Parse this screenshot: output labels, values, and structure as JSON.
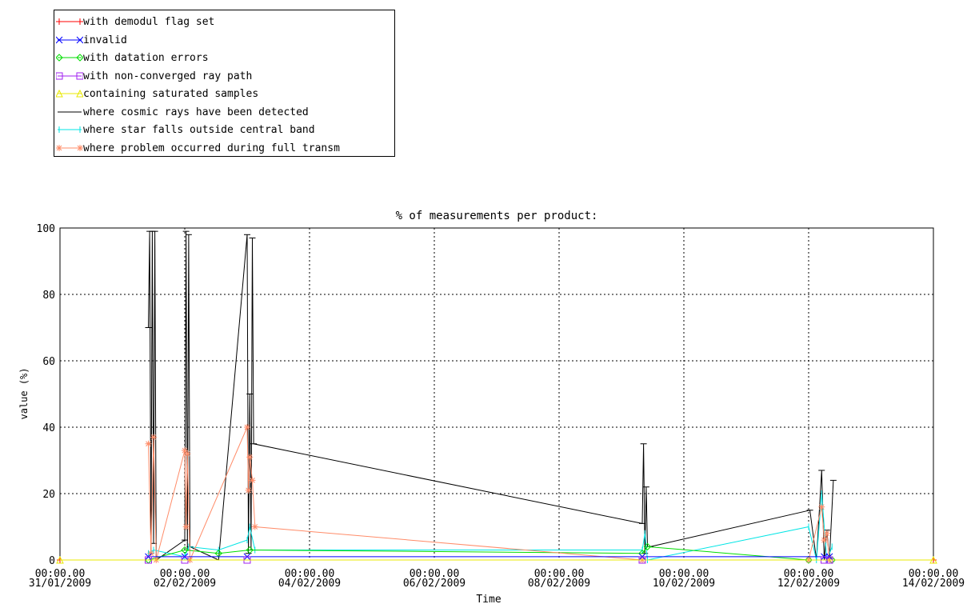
{
  "legend": [
    {
      "label": "with demodul flag set",
      "color": "#ff0000",
      "marker": "plus"
    },
    {
      "label": "invalid",
      "color": "#0000ff",
      "marker": "x"
    },
    {
      "label": "with datation errors",
      "color": "#00dd00",
      "marker": "diamond"
    },
    {
      "label": "with non-converged ray path",
      "color": "#a020f0",
      "marker": "square"
    },
    {
      "label": "containing saturated samples",
      "color": "#e8e800",
      "marker": "triangle"
    },
    {
      "label": "where cosmic rays have been detected",
      "color": "#000000",
      "marker": "none"
    },
    {
      "label": "where star falls outside central band",
      "color": "#00e5e5",
      "marker": "bar"
    },
    {
      "label": "where problem occurred during full transm",
      "color": "#ff8c69",
      "marker": "asterisk"
    }
  ],
  "chart_data": {
    "type": "line",
    "title": "% of measurements per product:",
    "xlabel": "Time",
    "ylabel": "value (%)",
    "xlim": [
      "2009-01-31T00:00",
      "2009-02-14T00:00"
    ],
    "ylim": [
      0,
      100
    ],
    "grid": true,
    "legend_position": "top-left",
    "x_ticks": [
      {
        "time": "00:00.00",
        "date": "31/01/2009"
      },
      {
        "time": "00:00.00",
        "date": "02/02/2009"
      },
      {
        "time": "00:00.00",
        "date": "04/02/2009"
      },
      {
        "time": "00:00.00",
        "date": "06/02/2009"
      },
      {
        "time": "00:00.00",
        "date": "08/02/2009"
      },
      {
        "time": "00:00.00",
        "date": "10/02/2009"
      },
      {
        "time": "00:00.00",
        "date": "12/02/2009"
      },
      {
        "time": "00:00.00",
        "date": "14/02/2009"
      }
    ],
    "y_ticks": [
      "0",
      "20",
      "40",
      "60",
      "80",
      "100"
    ],
    "series": [
      {
        "name": "where cosmic rays have been detected",
        "color": "#000000",
        "x": [
          "2009-02-01 10:00",
          "2009-02-01 10:30",
          "2009-02-01 11:00",
          "2009-02-01 11:30",
          "2009-02-01 12:00",
          "2009-02-01 12:30",
          "2009-02-01 13:00",
          "2009-02-02 00:00",
          "2009-02-02 00:30",
          "2009-02-02 01:00",
          "2009-02-02 01:30",
          "2009-02-02 02:00",
          "2009-02-02 13:00",
          "2009-02-03 00:00",
          "2009-02-03 00:30",
          "2009-02-03 01:00",
          "2009-02-03 01:30",
          "2009-02-03 02:00",
          "2009-02-03 02:30",
          "2009-02-09 08:00",
          "2009-02-09 08:30",
          "2009-02-09 09:00",
          "2009-02-09 09:30",
          "2009-02-09 10:00",
          "2009-02-09 11:00",
          "2009-02-12 00:30",
          "2009-02-12 03:00",
          "2009-02-12 05:00",
          "2009-02-12 06:00",
          "2009-02-12 07:00",
          "2009-02-12 08:00",
          "2009-02-12 09:30"
        ],
        "values": [
          70,
          99,
          2,
          99,
          5,
          99,
          0,
          6,
          99,
          3,
          98,
          4,
          0,
          98,
          2,
          50,
          3,
          97,
          35,
          11,
          35,
          2,
          22,
          4,
          4,
          15,
          0,
          27,
          0,
          9,
          0,
          24
        ]
      },
      {
        "name": "where star falls outside central band",
        "color": "#00e5e5",
        "x": [
          "2009-02-01 10:00",
          "2009-02-01 12:00",
          "2009-02-02 00:00",
          "2009-02-02 01:30",
          "2009-02-02 13:00",
          "2009-02-03 00:00",
          "2009-02-03 01:00",
          "2009-02-03 03:00",
          "2009-02-09 08:00",
          "2009-02-09 09:00",
          "2009-02-09 10:00",
          "2009-02-12 00:00",
          "2009-02-12 03:00",
          "2009-02-12 05:00",
          "2009-02-12 07:00",
          "2009-02-12 09:00"
        ],
        "values": [
          2,
          3,
          1,
          4,
          3,
          6,
          10,
          3,
          3,
          8,
          0,
          10,
          0,
          20,
          0,
          4
        ]
      },
      {
        "name": "with datation errors",
        "color": "#00dd00",
        "x": [
          "2009-02-01 10:00",
          "2009-02-02 00:00",
          "2009-02-02 13:00",
          "2009-02-03 01:00",
          "2009-02-09 08:00",
          "2009-02-09 10:00",
          "2009-02-12 00:00",
          "2009-02-12 09:00"
        ],
        "values": [
          0,
          3,
          2,
          3,
          2,
          4,
          0,
          0
        ]
      },
      {
        "name": "where problem occurred during full transm",
        "color": "#ff8c69",
        "x": [
          "2009-02-01 10:00",
          "2009-02-01 11:00",
          "2009-02-01 12:00",
          "2009-02-01 13:00",
          "2009-02-02 00:00",
          "2009-02-02 00:30",
          "2009-02-02 01:00",
          "2009-02-02 02:00",
          "2009-02-03 00:00",
          "2009-02-03 00:30",
          "2009-02-03 01:00",
          "2009-02-03 02:00",
          "2009-02-03 03:00",
          "2009-02-09 08:00",
          "2009-02-12 00:00",
          "2009-02-12 05:00",
          "2009-02-12 06:00",
          "2009-02-12 07:00",
          "2009-02-12 08:00"
        ],
        "values": [
          35,
          2,
          37,
          0,
          33,
          10,
          32,
          0,
          40,
          21,
          31,
          24,
          10,
          0,
          0,
          16,
          6,
          8,
          0
        ]
      },
      {
        "name": "with demodul flag set",
        "color": "#ff0000",
        "x": [
          "2009-01-31 00:00",
          "2009-02-14 00:00"
        ],
        "values": [
          0,
          0
        ]
      },
      {
        "name": "invalid",
        "color": "#0000ff",
        "x": [
          "2009-02-01 10:00",
          "2009-02-02 00:00",
          "2009-02-03 00:00",
          "2009-02-09 08:00",
          "2009-02-12 06:00",
          "2009-02-12 08:00"
        ],
        "values": [
          1,
          1,
          1,
          1,
          1,
          1
        ]
      },
      {
        "name": "with non-converged ray path",
        "color": "#a020f0",
        "x": [
          "2009-02-01 10:00",
          "2009-02-02 00:00",
          "2009-02-03 00:00",
          "2009-02-09 08:00",
          "2009-02-12 06:00",
          "2009-02-12 08:00"
        ],
        "values": [
          0,
          0,
          0,
          0,
          0,
          0
        ]
      },
      {
        "name": "containing saturated samples",
        "color": "#e8e800",
        "x": [
          "2009-01-31 00:00",
          "2009-02-14 00:00"
        ],
        "values": [
          0,
          0
        ]
      }
    ]
  }
}
